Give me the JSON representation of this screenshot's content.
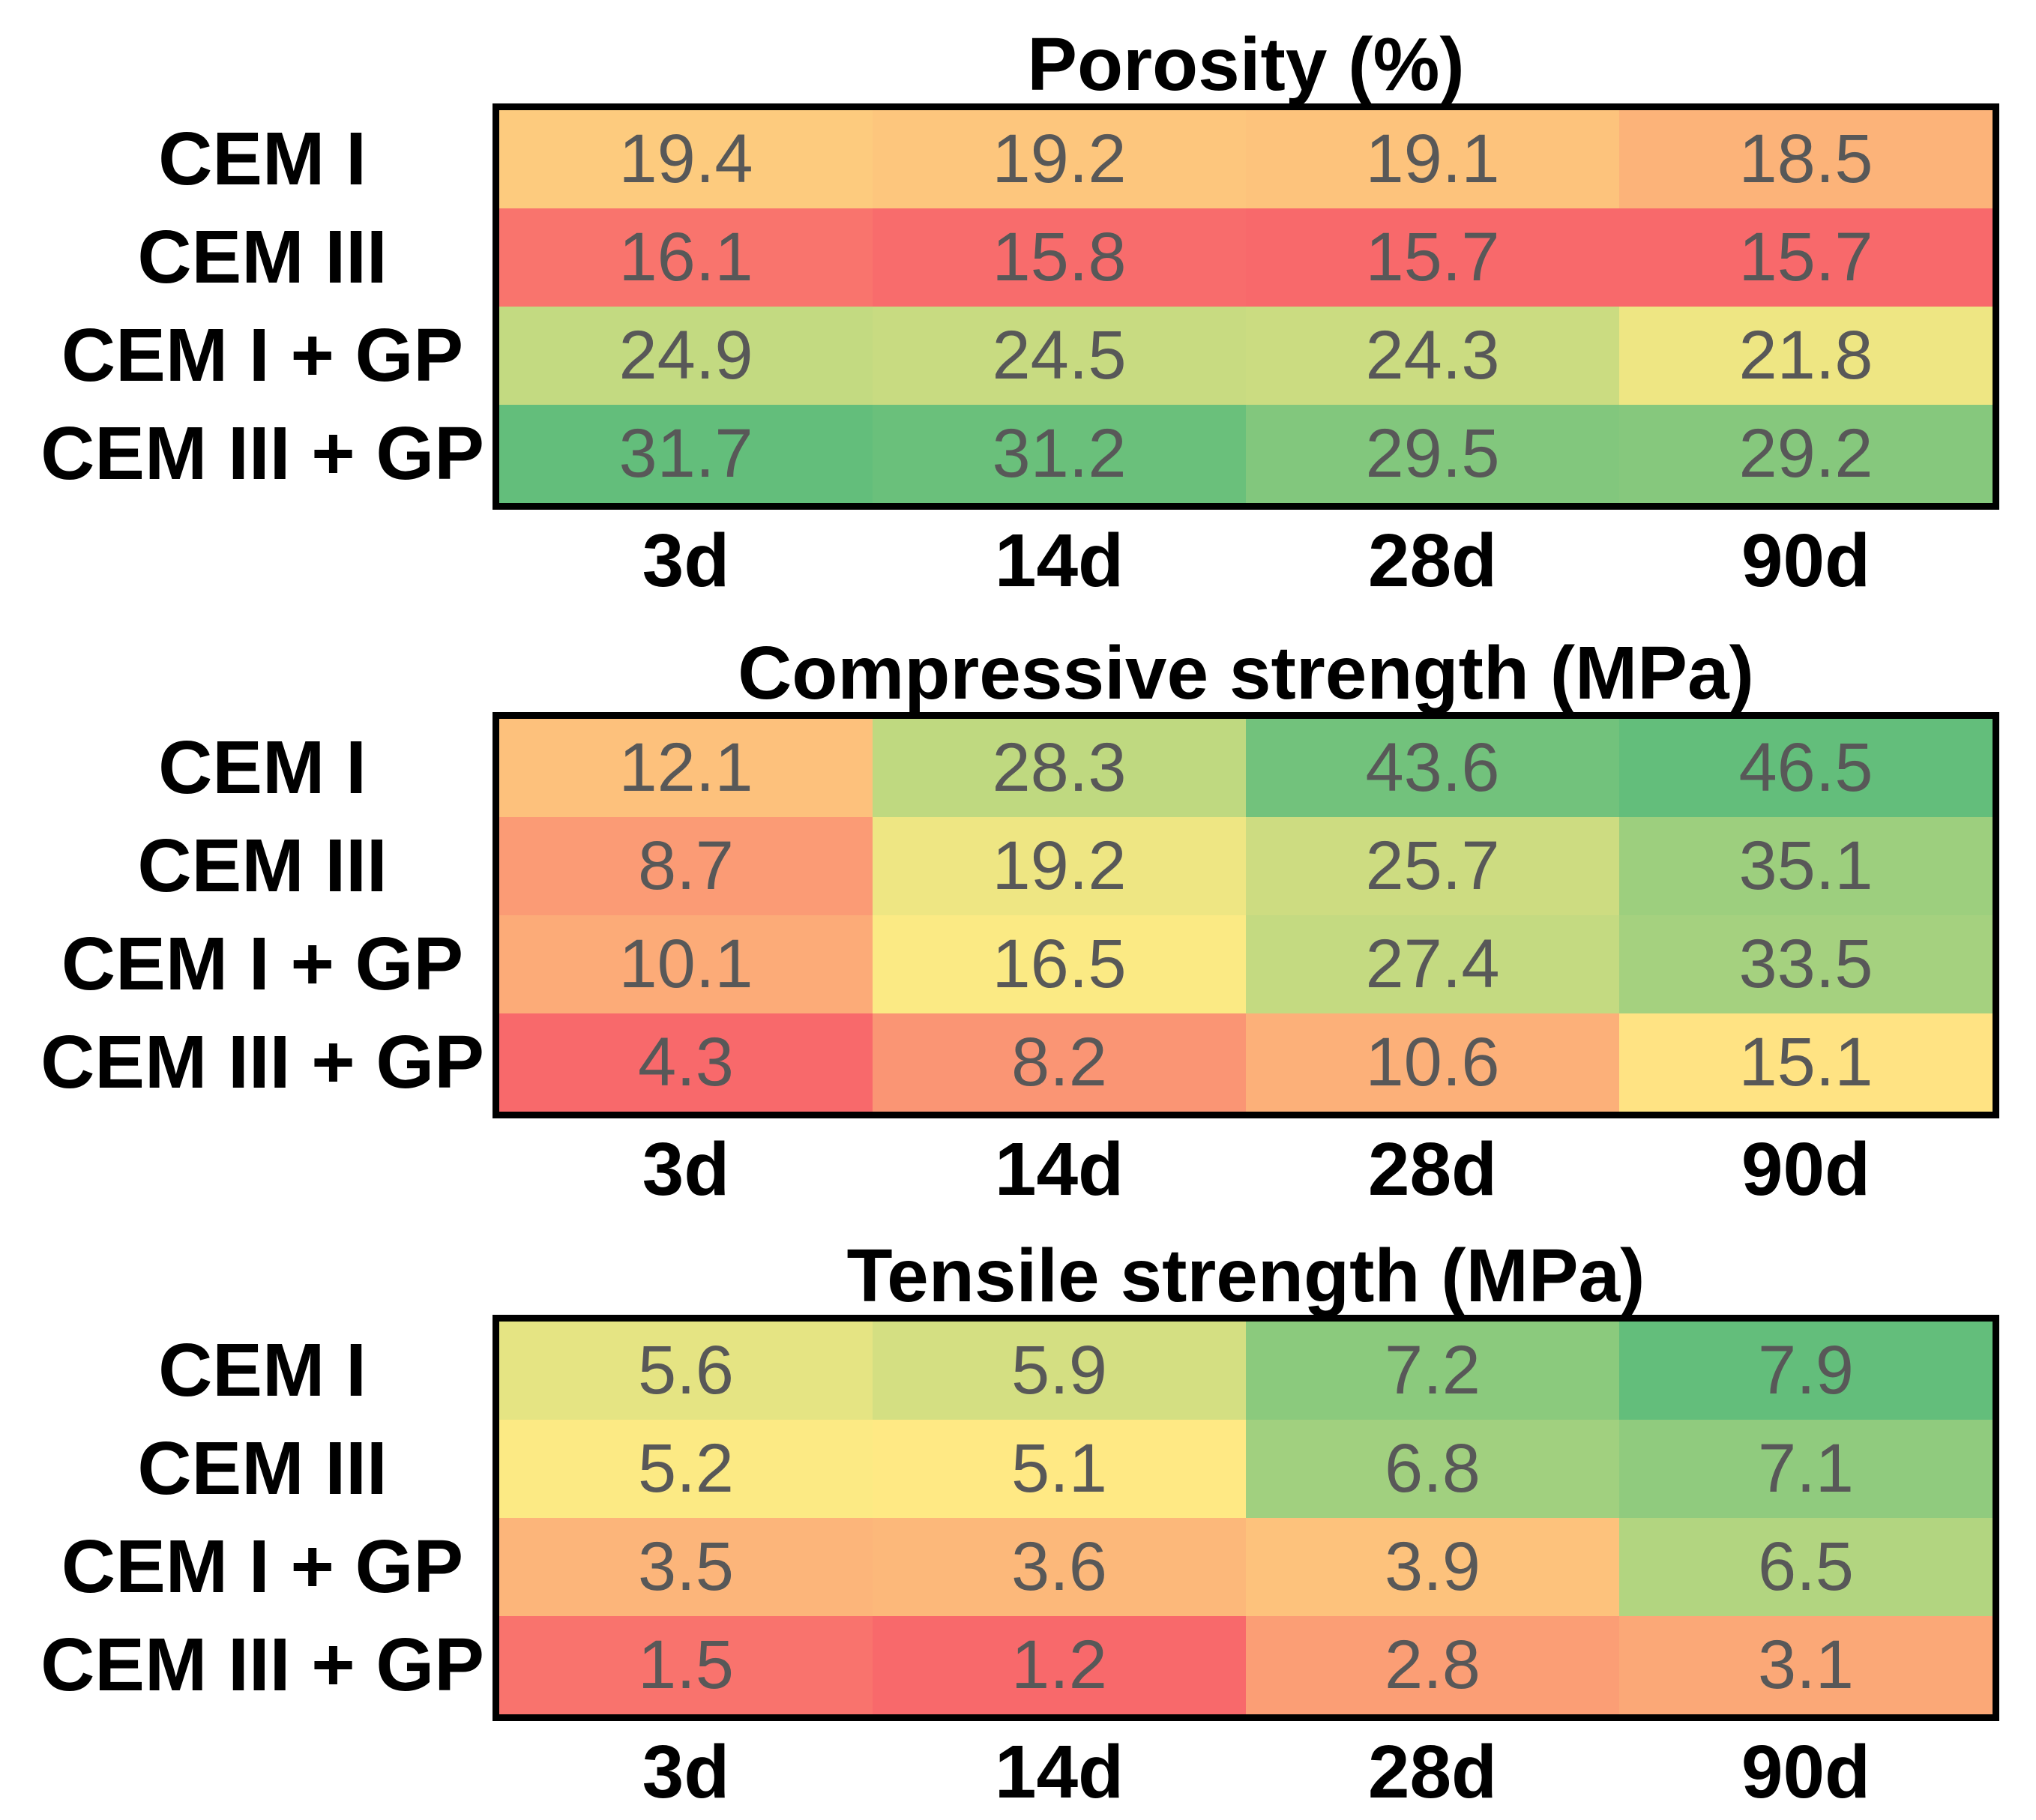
{
  "figure": {
    "style": {
      "cell_value_color": "#585858",
      "label_color": "#000000",
      "border_color": "#000000",
      "background": "#ffffff"
    },
    "color_scale": {
      "type": "red-yellow-green-3-point",
      "low_color": "#F8696B",
      "mid_color": "#FFEB84",
      "high_color": "#63BE7B",
      "note": "low value = red, high value = green, normalized per heatmap"
    }
  },
  "chart_data": [
    {
      "type": "heatmap",
      "title": "Porosity (%)",
      "rows": [
        "CEM I",
        "CEM III",
        "CEM I + GP",
        "CEM III + GP"
      ],
      "columns": [
        "3d",
        "14d",
        "28d",
        "90d"
      ],
      "values": [
        [
          19.4,
          19.2,
          19.1,
          18.5
        ],
        [
          16.1,
          15.8,
          15.7,
          15.7
        ],
        [
          24.9,
          24.5,
          24.3,
          21.8
        ],
        [
          31.7,
          31.2,
          29.5,
          29.2
        ]
      ],
      "cell_colors": [
        [
          "#FDCB7E",
          "#FDC67D",
          "#FDC37C",
          "#FCB379"
        ],
        [
          "#F9746D",
          "#F86C6C",
          "#F8696B",
          "#F8696B"
        ],
        [
          "#C3DA81",
          "#C8DB81",
          "#CBDC81",
          "#EEE683"
        ],
        [
          "#63BE7B",
          "#6AC07B",
          "#82C77D",
          "#86C87D"
        ]
      ],
      "value_range": [
        15.7,
        31.7
      ]
    },
    {
      "type": "heatmap",
      "title": "Compressive strength (MPa)",
      "rows": [
        "CEM I",
        "CEM III",
        "CEM I + GP",
        "CEM III + GP"
      ],
      "columns": [
        "3d",
        "14d",
        "28d",
        "90d"
      ],
      "values": [
        [
          12.1,
          28.3,
          43.6,
          46.5
        ],
        [
          8.7,
          19.2,
          25.7,
          35.1
        ],
        [
          10.1,
          16.5,
          27.4,
          33.5
        ],
        [
          4.3,
          8.2,
          10.6,
          15.1
        ]
      ],
      "cell_colors": [
        [
          "#FDC17C",
          "#BFD980",
          "#72C27C",
          "#63BE7B"
        ],
        [
          "#FB9B75",
          "#EEE683",
          "#CDDC81",
          "#9DCF7E"
        ],
        [
          "#FCAB78",
          "#FBEA84",
          "#C4DA81",
          "#A5D17F"
        ],
        [
          "#F8696B",
          "#FA9574",
          "#FCB079",
          "#FFE383"
        ]
      ],
      "value_range": [
        4.3,
        46.5
      ]
    },
    {
      "type": "heatmap",
      "title": "Tensile strength (MPa)",
      "rows": [
        "CEM I",
        "CEM III",
        "CEM I + GP",
        "CEM III + GP"
      ],
      "columns": [
        "3d",
        "14d",
        "28d",
        "90d"
      ],
      "values": [
        [
          5.6,
          5.9,
          7.2,
          7.9
        ],
        [
          5.2,
          5.1,
          6.8,
          7.1
        ],
        [
          3.5,
          3.6,
          3.9,
          6.5
        ],
        [
          1.5,
          1.2,
          2.8,
          3.1
        ]
      ],
      "cell_colors": [
        [
          "#E5E483",
          "#D4DF82",
          "#8BCA7D",
          "#63BE7B"
        ],
        [
          "#FCEA84",
          "#FFE984",
          "#A1D07F",
          "#90CB7E"
        ],
        [
          "#FCB57A",
          "#FCB87A",
          "#FDC27C",
          "#B2D580"
        ],
        [
          "#F9736D",
          "#F8696B",
          "#FB9E75",
          "#FBA877"
        ]
      ],
      "value_range": [
        1.2,
        7.9
      ]
    }
  ]
}
